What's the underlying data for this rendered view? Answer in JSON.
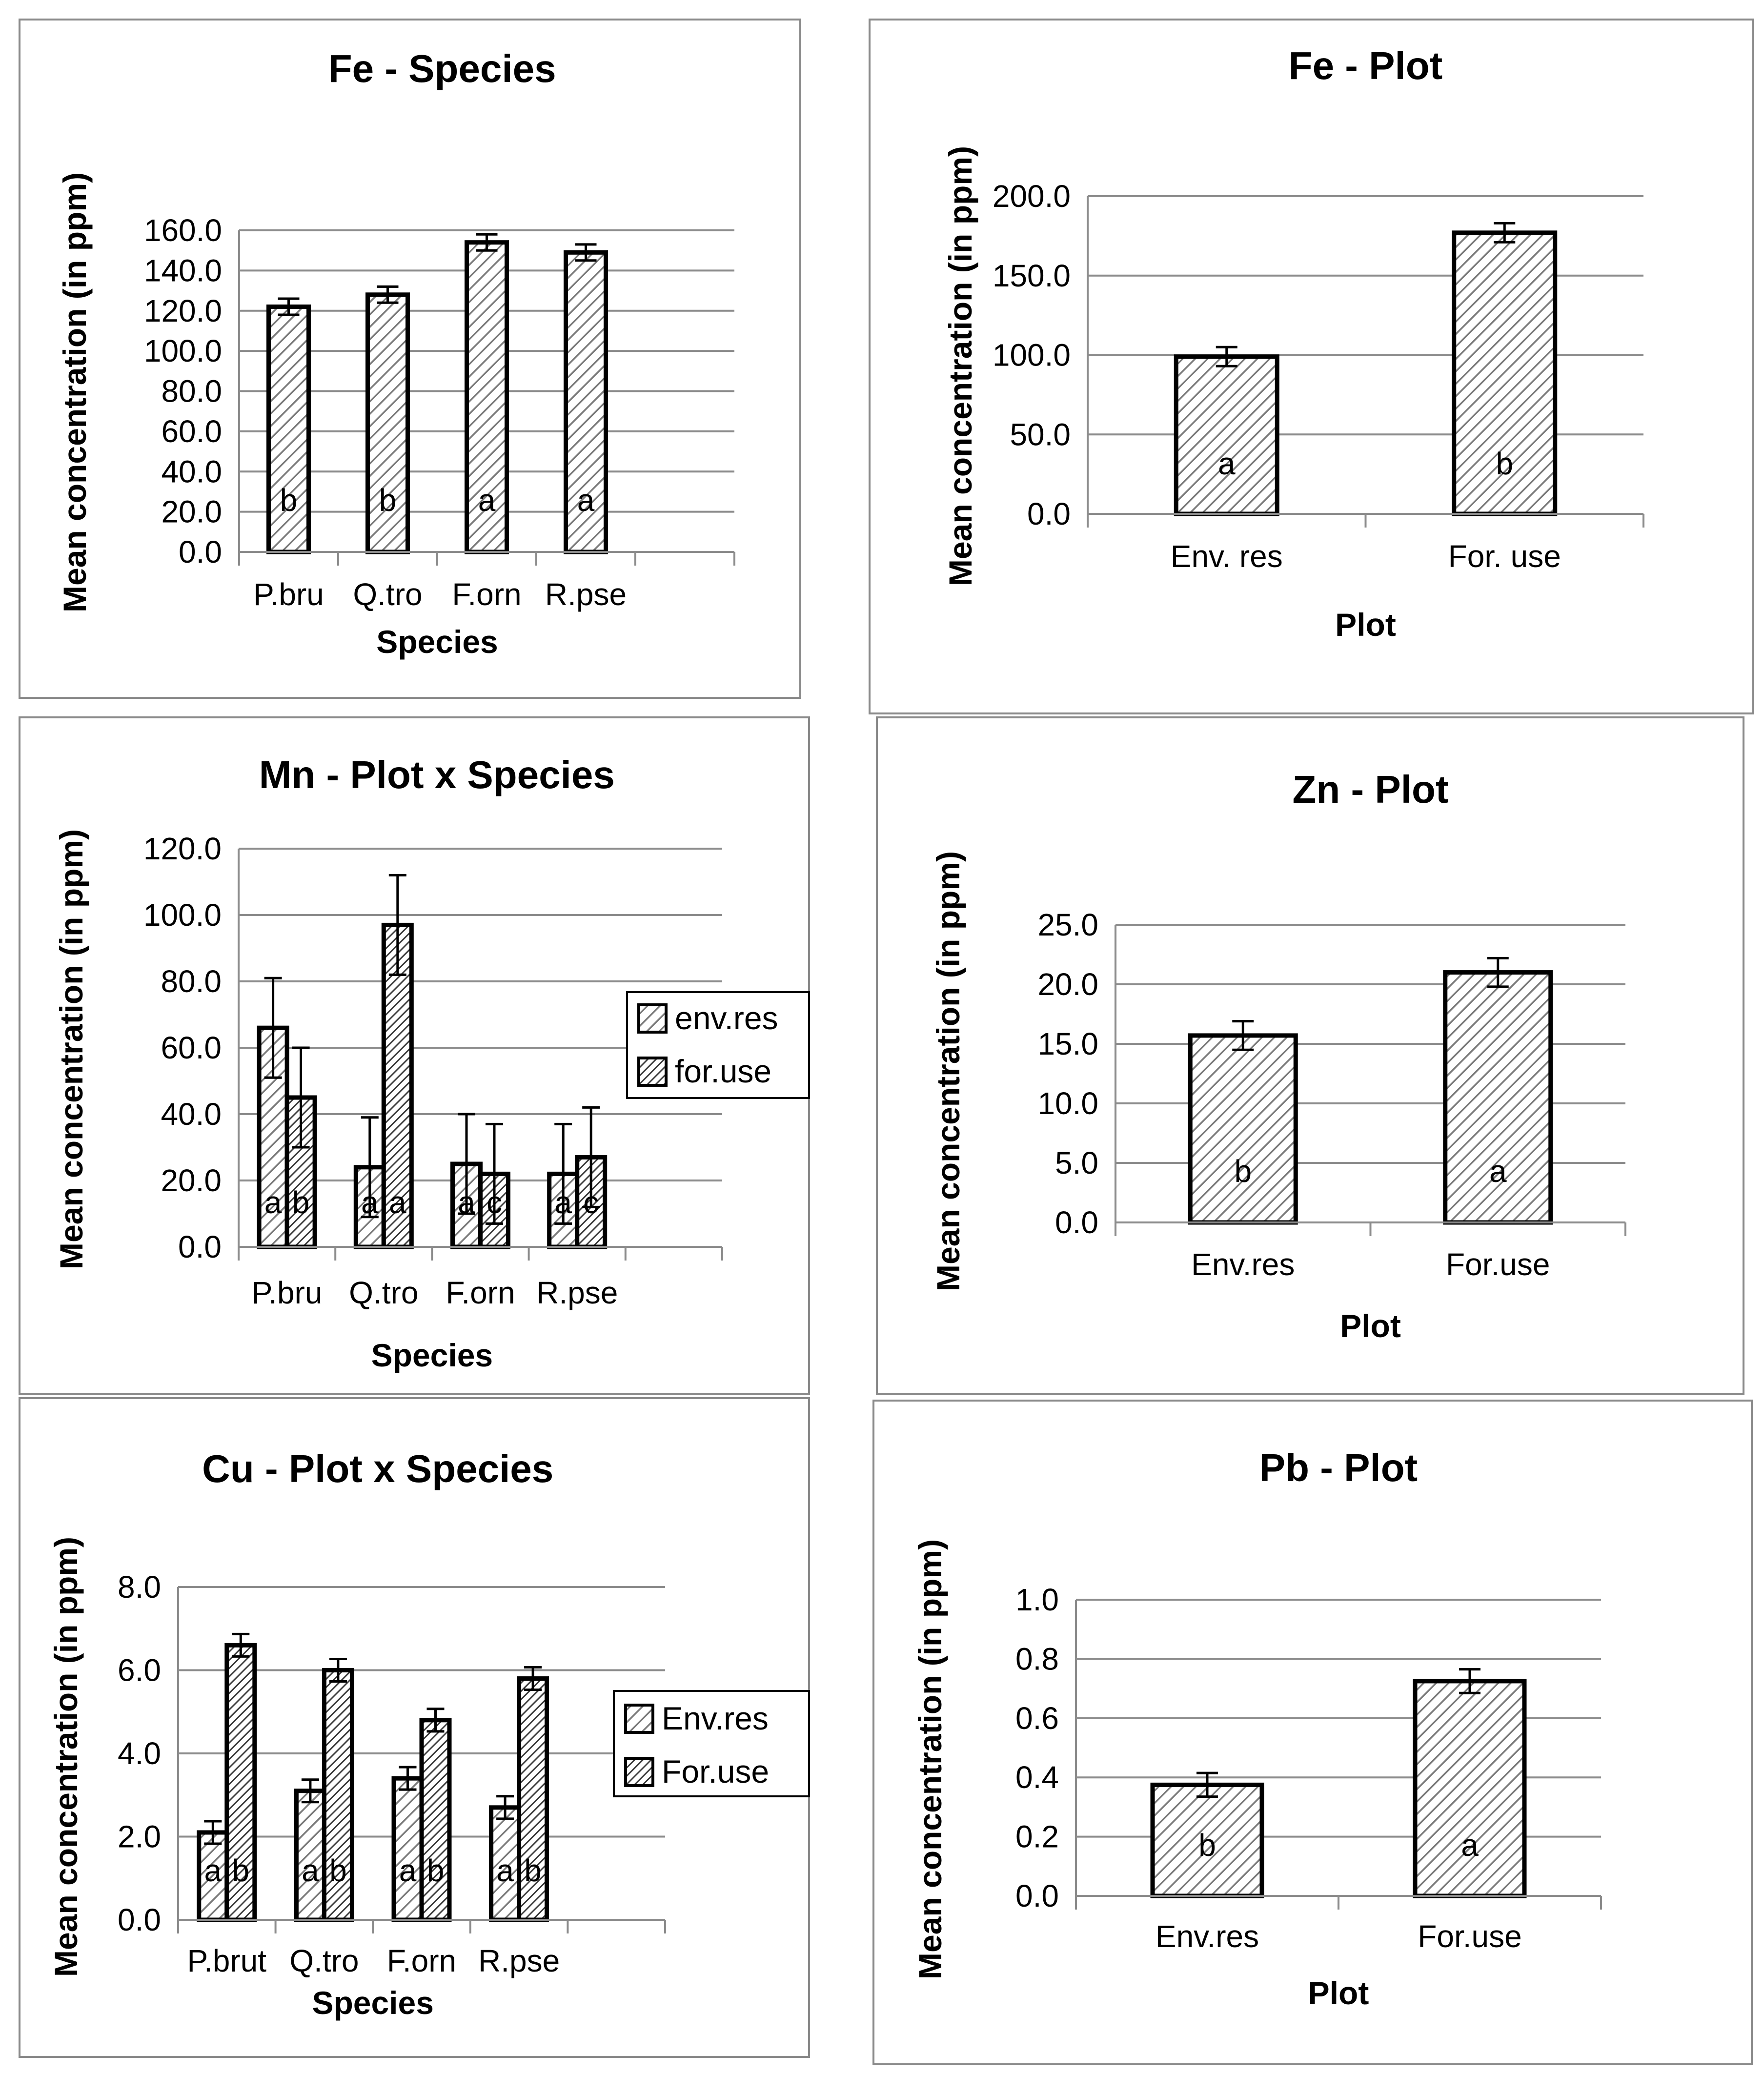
{
  "figure": {
    "pattern_colors": {
      "background": "#ffffff",
      "hatch": "#7a7a7a",
      "bar_edge": "#000000",
      "grid": "#8c8c8c"
    }
  },
  "chart_data": [
    {
      "id": "fe-species",
      "type": "bar",
      "title": "Fe - Species",
      "xlabel": "Species",
      "ylabel": "Mean concentration (in ppm)",
      "ylim": [
        0,
        160
      ],
      "ytick_step": 20,
      "ytick_decimals": 1,
      "categories": [
        "P.bru",
        "Q.tro",
        "F.orn",
        "R.pse"
      ],
      "extra_slots": 1,
      "series": [
        {
          "name": "",
          "pattern": "light",
          "values": [
            122,
            128,
            154,
            149
          ],
          "errors": [
            4,
            4,
            4,
            4
          ],
          "letters": [
            "b",
            "b",
            "a",
            "a"
          ]
        }
      ]
    },
    {
      "id": "fe-plot",
      "type": "bar",
      "title": "Fe - Plot",
      "xlabel": "Plot",
      "ylabel": "Mean concentration (in ppm)",
      "ylim": [
        0,
        200
      ],
      "ytick_step": 50,
      "ytick_decimals": 1,
      "categories": [
        "Env. res",
        "For. use"
      ],
      "extra_slots": 0,
      "series": [
        {
          "name": "",
          "pattern": "light",
          "values": [
            99,
            177
          ],
          "errors": [
            6,
            6
          ],
          "letters": [
            "a",
            "b"
          ]
        }
      ]
    },
    {
      "id": "mn-plot-species",
      "type": "bar",
      "title": "Mn - Plot x Species",
      "xlabel": "Species",
      "ylabel": "Mean concentration (in ppm)",
      "ylim": [
        0,
        120
      ],
      "ytick_step": 20,
      "ytick_decimals": 1,
      "categories": [
        "P.bru",
        "Q.tro",
        "F.orn",
        "R.pse"
      ],
      "extra_slots": 1,
      "series": [
        {
          "name": "env.res",
          "pattern": "light",
          "values": [
            66,
            24,
            25,
            22
          ],
          "errors": [
            15,
            15,
            15,
            15
          ],
          "letters": [
            "a",
            "a",
            "a",
            "a"
          ]
        },
        {
          "name": "for.use",
          "pattern": "dense",
          "values": [
            45,
            97,
            22,
            27
          ],
          "errors": [
            15,
            15,
            15,
            15
          ],
          "letters": [
            "b",
            "a",
            "c",
            "c"
          ]
        }
      ]
    },
    {
      "id": "zn-plot",
      "type": "bar",
      "title": "Zn - Plot",
      "xlabel": "Plot",
      "ylabel": "Mean concentration (in ppm)",
      "ylim": [
        0,
        25
      ],
      "ytick_step": 5,
      "ytick_decimals": 1,
      "categories": [
        "Env.res",
        "For.use"
      ],
      "extra_slots": 0,
      "series": [
        {
          "name": "",
          "pattern": "light",
          "values": [
            15.7,
            21.0
          ],
          "errors": [
            1.2,
            1.2
          ],
          "letters": [
            "b",
            "a"
          ]
        }
      ]
    },
    {
      "id": "cu-plot-species",
      "type": "bar",
      "title": "Cu - Plot x Species",
      "xlabel": "Species",
      "ylabel": "Mean concentration (in ppm)",
      "ylim": [
        0,
        8
      ],
      "ytick_step": 2,
      "ytick_decimals": 1,
      "categories": [
        "P.brut",
        "Q.tro",
        "F.orn",
        "R.pse"
      ],
      "extra_slots": 1,
      "series": [
        {
          "name": "Env.res",
          "pattern": "light",
          "values": [
            2.1,
            3.1,
            3.4,
            2.7
          ],
          "errors": [
            0.27,
            0.27,
            0.27,
            0.27
          ],
          "letters": [
            "a",
            "a",
            "a",
            "a"
          ]
        },
        {
          "name": "For.use",
          "pattern": "dense",
          "values": [
            6.6,
            6.0,
            4.8,
            5.8
          ],
          "errors": [
            0.27,
            0.27,
            0.27,
            0.27
          ],
          "letters": [
            "b",
            "b",
            "b",
            "b"
          ]
        }
      ]
    },
    {
      "id": "pb-plot",
      "type": "bar",
      "title": "Pb - Plot",
      "xlabel": "Plot",
      "ylabel": "Mean concentration (in ppm)",
      "ylim": [
        0,
        1
      ],
      "ytick_step": 0.2,
      "ytick_decimals": 1,
      "categories": [
        "Env.res",
        "For.use"
      ],
      "extra_slots": 0,
      "series": [
        {
          "name": "",
          "pattern": "light",
          "values": [
            0.375,
            0.725
          ],
          "errors": [
            0.04,
            0.04
          ],
          "letters": [
            "b",
            "a"
          ]
        }
      ]
    }
  ]
}
